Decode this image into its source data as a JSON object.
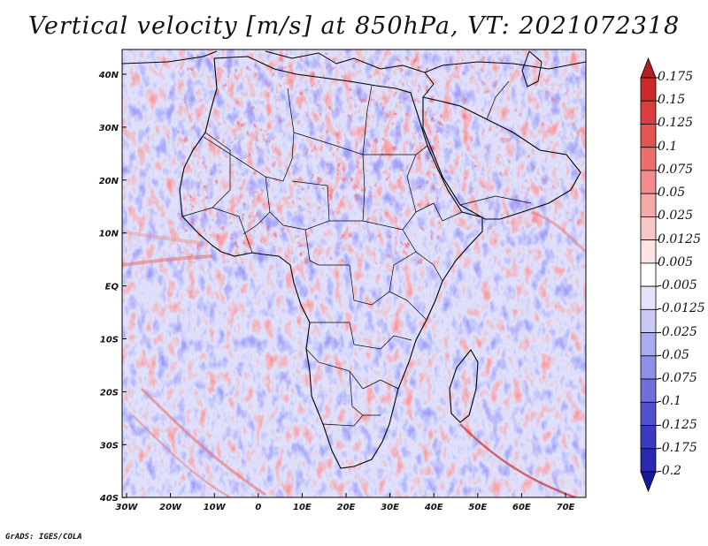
{
  "title": "Vertical velocity [m/s] at 850hPa, VT: 2021072318",
  "credit": "GrADS: IGES/COLA",
  "lon_ticks": [
    "30W",
    "20W",
    "10W",
    "0",
    "10E",
    "20E",
    "30E",
    "40E",
    "50E",
    "60E",
    "70E"
  ],
  "lat_ticks": [
    "40N",
    "30N",
    "20N",
    "10N",
    "EQ",
    "10S",
    "20S",
    "30S",
    "40S"
  ],
  "colorbar": {
    "labels": [
      "0.175",
      "0.15",
      "0.125",
      "0.1",
      "0.075",
      "0.05",
      "0.025",
      "0.0125",
      "0.005",
      "-0.005",
      "-0.0125",
      "-0.025",
      "-0.05",
      "-0.075",
      "-0.1",
      "-0.125",
      "-0.175",
      "-0.2"
    ],
    "colors": [
      "#b42020",
      "#cc2a2a",
      "#dc3e3e",
      "#e55454",
      "#ec6e6e",
      "#f28d8d",
      "#f5a9a9",
      "#f9c6c6",
      "#fde3e3",
      "#ffffff",
      "#e3e3fb",
      "#c9c9f5",
      "#ababef",
      "#8f8fe8",
      "#7070dd",
      "#5252cf",
      "#3a3ac0",
      "#2828b0",
      "#18189a"
    ]
  },
  "colors": {
    "positive": "#dc3e3e",
    "negative": "#5252cf",
    "border": "#000000"
  }
}
